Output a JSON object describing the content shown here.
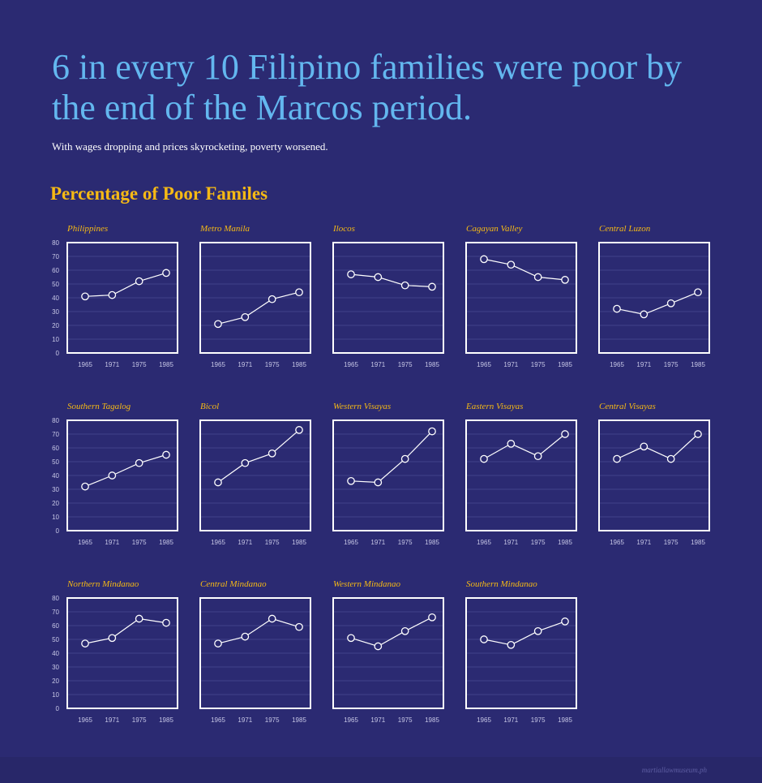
{
  "header": {
    "title": "6 in every 10 Filipino families were poor by the end of the Marcos period.",
    "subtitle": "With wages dropping and prices skyrocketing, poverty worsened.",
    "section_title": "Percentage of Poor Familes"
  },
  "footer": {
    "source": "martiallawmuseum.ph"
  },
  "colors": {
    "background": "#2b2a72",
    "headline": "#63b7ef",
    "accent": "#f5b915",
    "line": "#ffffff",
    "grid": "#4a4a92",
    "axis_text": "#c7c7e6"
  },
  "chart_data": {
    "type": "line",
    "title": "Percentage of Poor Familes",
    "categories": [
      "1965",
      "1971",
      "1975",
      "1985"
    ],
    "ylim": [
      0,
      80
    ],
    "yticks": [
      0,
      10,
      20,
      30,
      40,
      50,
      60,
      70,
      80
    ],
    "grid": true,
    "series": [
      {
        "name": "Philippines",
        "values": [
          41,
          42,
          52,
          58
        ]
      },
      {
        "name": "Metro Manila",
        "values": [
          21,
          26,
          39,
          44
        ]
      },
      {
        "name": "Ilocos",
        "values": [
          57,
          55,
          49,
          48
        ]
      },
      {
        "name": "Cagayan Valley",
        "values": [
          68,
          64,
          55,
          53
        ]
      },
      {
        "name": "Central Luzon",
        "values": [
          32,
          28,
          36,
          44
        ]
      },
      {
        "name": "Southern Tagalog",
        "values": [
          32,
          40,
          49,
          55
        ]
      },
      {
        "name": "Bicol",
        "values": [
          35,
          49,
          56,
          73
        ]
      },
      {
        "name": "Western Visayas",
        "values": [
          36,
          35,
          52,
          72
        ]
      },
      {
        "name": "Eastern Visayas",
        "values": [
          52,
          63,
          54,
          70
        ]
      },
      {
        "name": "Central Visayas",
        "values": [
          52,
          61,
          52,
          70
        ]
      },
      {
        "name": "Northern Mindanao",
        "values": [
          47,
          51,
          65,
          62
        ]
      },
      {
        "name": "Central Mindanao",
        "values": [
          47,
          52,
          65,
          59
        ]
      },
      {
        "name": "Western Mindanao",
        "values": [
          51,
          45,
          56,
          66
        ]
      },
      {
        "name": "Southern Mindanao",
        "values": [
          50,
          46,
          56,
          63
        ]
      }
    ]
  }
}
